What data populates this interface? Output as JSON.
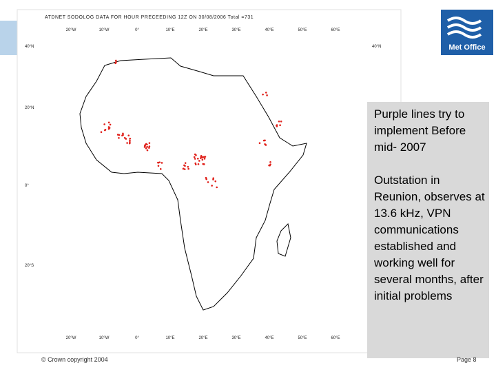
{
  "map": {
    "title": "ATDNET SODOLOG DATA FOR HOUR PRECEEDING 12Z ON 30/08/2006 Total =731",
    "longitude_labels_top": [
      "20°W",
      "10°W",
      "0°",
      "10°E",
      "20°E",
      "30°E",
      "40°E",
      "50°E",
      "60°E"
    ],
    "longitude_labels_bottom": [
      "20°W",
      "10°W",
      "0°",
      "10°E",
      "20°E",
      "30°E",
      "40°E",
      "50°E",
      "60°E"
    ],
    "latitude_labels_left": [
      "40°N",
      "20°N",
      "0°",
      "20°S"
    ],
    "latitude_labels_right": [
      "40°N"
    ]
  },
  "logo": "Met Office",
  "notes": [
    "Purple lines try to implement Before mid- 2007",
    "Outstation in Reunion, observes at 13.6 kHz, VPN communications established and working well for several months, after initial problems"
  ],
  "footer": {
    "copyright": "© Crown copyright 2004",
    "page": "Page 8"
  }
}
